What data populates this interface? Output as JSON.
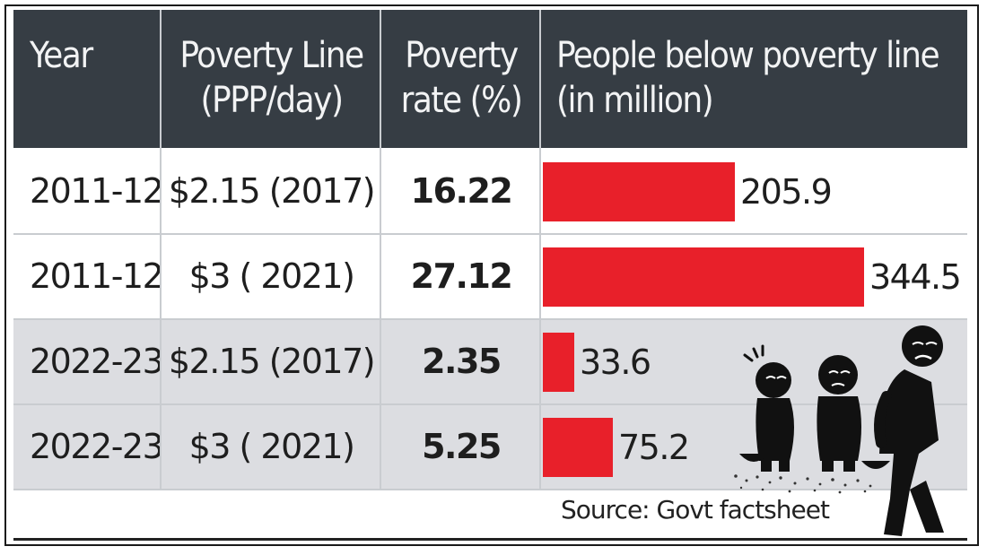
{
  "headers": {
    "year": "Year",
    "poverty_line_1": "Poverty Line",
    "poverty_line_2": "(PPP/day)",
    "rate_1": "Poverty",
    "rate_2": "rate (%)",
    "people_1": "People below poverty line",
    "people_2": "(in million)"
  },
  "rows": [
    {
      "year": "2011-12",
      "line": "$2.15 (2017)",
      "rate": "16.22",
      "people": "205.9"
    },
    {
      "year": "2011-12",
      "line": "$3 ( 2021)",
      "rate": "27.12",
      "people": "344.5"
    },
    {
      "year": "2022-23",
      "line": "$2.15 (2017)",
      "rate": "2.35",
      "people": "33.6"
    },
    {
      "year": "2022-23",
      "line": "$3 ( 2021)",
      "rate": "5.25",
      "people": "75.2"
    }
  ],
  "source": "Source: Govt factsheet",
  "colors": {
    "header_bg": "#363d44",
    "bar": "#e8202a",
    "alt_row": "#dcdde1"
  },
  "chart_data": {
    "type": "table",
    "columns": [
      "Year",
      "Poverty Line (PPP/day)",
      "Poverty rate (%)",
      "People below poverty line (in million)"
    ],
    "bar_column": "People below poverty line (in million)",
    "bar_values": [
      205.9,
      344.5,
      33.6,
      75.2
    ],
    "bar_max": 344.5,
    "bar_unit": "million"
  },
  "illustration": "people-in-poverty-illustration"
}
